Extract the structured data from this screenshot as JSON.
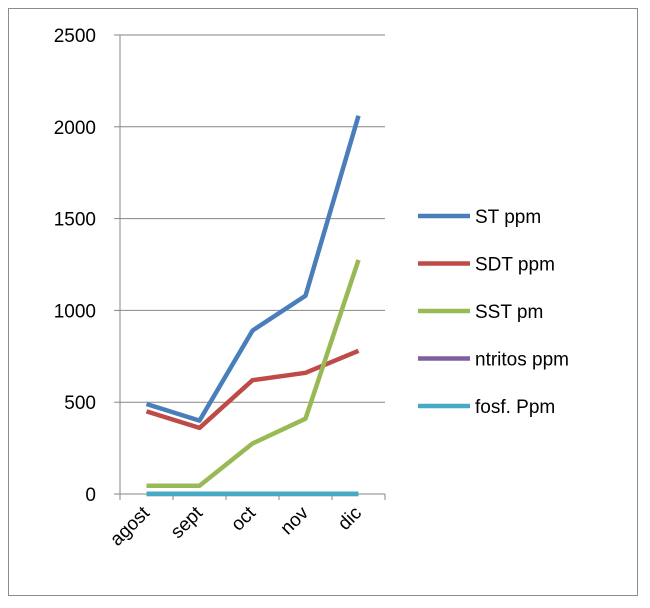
{
  "chart_data": {
    "type": "line",
    "title": "",
    "xlabel": "",
    "ylabel": "",
    "categories": [
      "agost",
      "sept",
      "oct",
      "nov",
      "dic"
    ],
    "ylim": [
      0,
      2500
    ],
    "yticks": [
      0,
      500,
      1000,
      1500,
      2000,
      2500
    ],
    "grid": true,
    "legend_position": "right",
    "series": [
      {
        "name": "ST  ppm",
        "color": "#4a7ebb",
        "values": [
          490,
          400,
          890,
          1080,
          2060
        ]
      },
      {
        "name": "SDT  ppm",
        "color": "#be4b48",
        "values": [
          450,
          360,
          620,
          660,
          780
        ]
      },
      {
        "name": "SST  pm",
        "color": "#98b954",
        "values": [
          45,
          45,
          275,
          410,
          1275
        ]
      },
      {
        "name": "ntritos  ppm",
        "color": "#7d60a0",
        "values": [
          0,
          0,
          0,
          0,
          0
        ]
      },
      {
        "name": "fosf.  Ppm",
        "color": "#46aac5",
        "values": [
          1,
          1,
          1,
          1,
          1
        ]
      }
    ]
  }
}
